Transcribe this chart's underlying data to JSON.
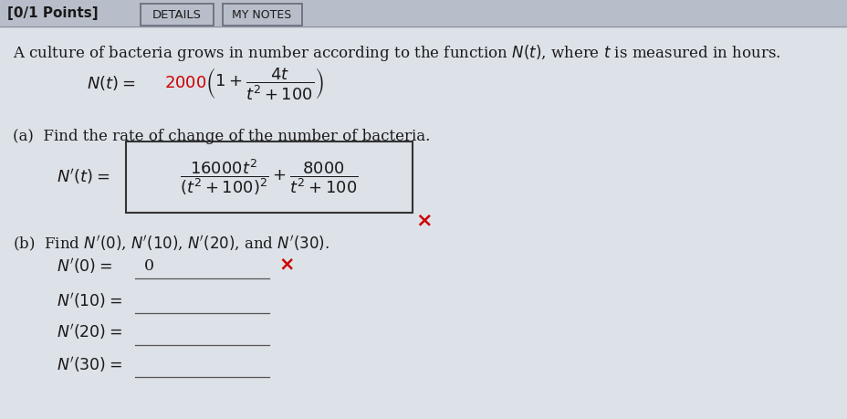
{
  "bg_color": "#cdd2db",
  "white_bg": "#ffffff",
  "header_text": "[0/1 Points]",
  "header_box1": "DETAILS",
  "intro_text": "A culture of bacteria grows in number according to the function $N(t)$, where $t$ is measured in hours.",
  "red_color": "#cc0000",
  "text_color": "#1a1a1a",
  "box_edge_color": "#333333",
  "underline_color": "#555555",
  "font_size_header": 11,
  "font_size_intro": 12,
  "font_size_formula": 13,
  "font_size_parts": 12
}
